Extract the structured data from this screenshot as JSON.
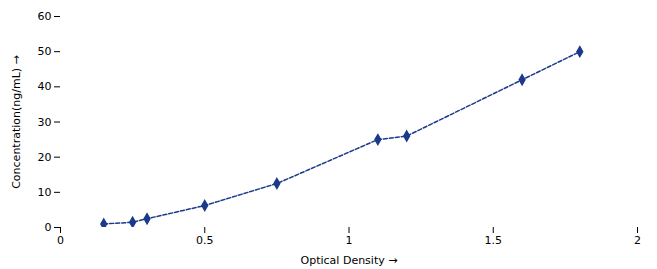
{
  "chart_data": {
    "type": "line",
    "x": [
      0.15,
      0.25,
      0.3,
      0.5,
      0.75,
      1.1,
      1.2,
      1.6,
      1.8
    ],
    "values": [
      1.0,
      1.5,
      2.5,
      6.25,
      12.5,
      25.0,
      26.0,
      42.0,
      50.0
    ],
    "color": "#1c3a8a",
    "marker": "diamond",
    "line_style": "dashed",
    "xlabel": "Optical Density",
    "ylabel": "Concentration(ng/mL)",
    "xlim": [
      0,
      2.0
    ],
    "ylim": [
      0,
      60
    ],
    "xticks": [
      0,
      0.5,
      1,
      1.5,
      2
    ],
    "yticks": [
      0,
      10,
      20,
      30,
      40,
      50,
      60
    ],
    "grid": false
  }
}
